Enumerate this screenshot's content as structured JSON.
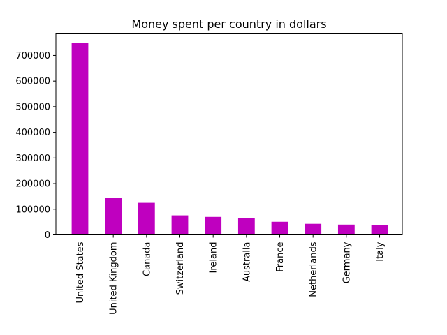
{
  "chart_data": {
    "type": "bar",
    "title": "Money spent per country in dollars",
    "xlabel": "",
    "ylabel": "",
    "categories": [
      "United States",
      "United Kingdom",
      "Canada",
      "Switzerland",
      "Ireland",
      "Australia",
      "France",
      "Netherlands",
      "Germany",
      "Italy"
    ],
    "values": [
      748000,
      144000,
      125000,
      76000,
      70000,
      65000,
      51000,
      43000,
      40000,
      37000
    ],
    "ylim": [
      0,
      787000
    ],
    "yticks": [
      0,
      100000,
      200000,
      300000,
      400000,
      500000,
      600000,
      700000
    ],
    "ytick_labels": [
      "0",
      "100000",
      "200000",
      "300000",
      "400000",
      "500000",
      "600000",
      "700000"
    ],
    "bar_color": "#bf00bf",
    "grid": false,
    "legend": "none"
  }
}
